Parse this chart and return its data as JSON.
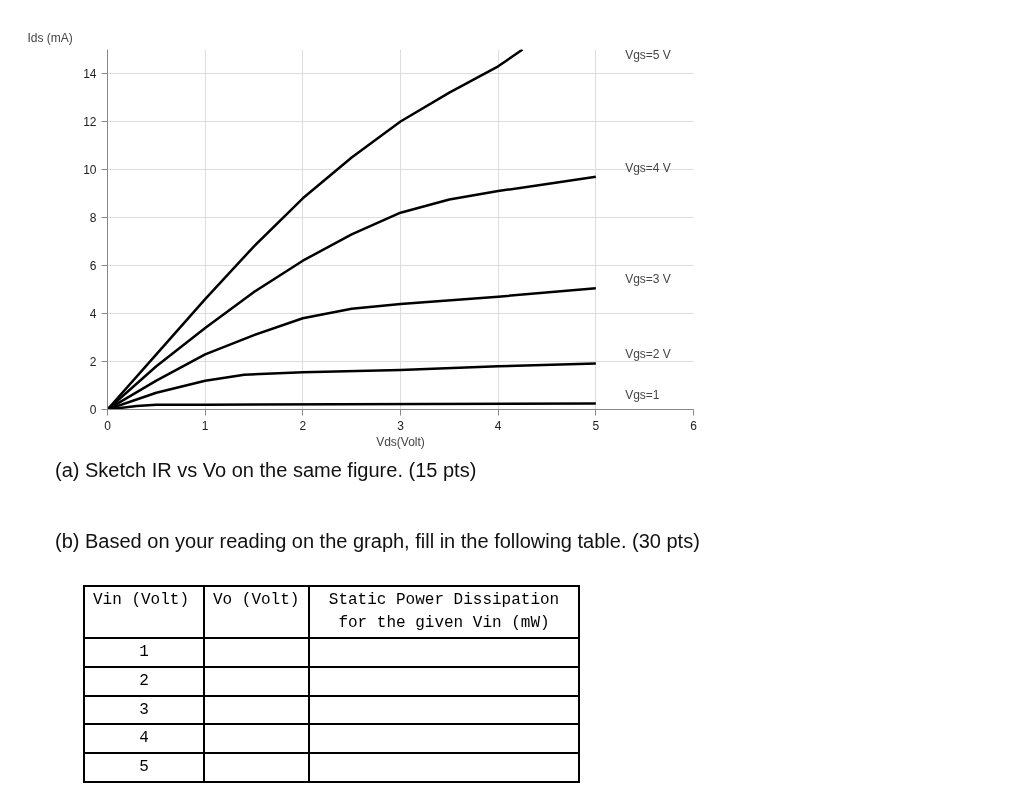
{
  "chart_data": {
    "type": "line",
    "xlabel": "Vds(Volt)",
    "ylabel": "Ids (mA)",
    "xlim": [
      0,
      6
    ],
    "ylim": [
      0,
      15
    ],
    "xticks": [
      0,
      1,
      2,
      3,
      4,
      5,
      6
    ],
    "yticks": [
      0,
      2,
      4,
      6,
      8,
      10,
      12,
      14
    ],
    "grid": true,
    "marker": "none",
    "line_style": "solid",
    "series": [
      {
        "name": "Vgs=5 V",
        "color": "#000000",
        "x": [
          0,
          0.5,
          1,
          1.5,
          2,
          2.5,
          3,
          3.5,
          4,
          4.25
        ],
        "values": [
          0,
          2.3,
          4.6,
          6.8,
          8.8,
          10.5,
          12,
          13.2,
          14.3,
          15
        ]
      },
      {
        "name": "Vgs=4 V",
        "color": "#000000",
        "x": [
          0,
          0.5,
          1,
          1.5,
          2,
          2.5,
          3,
          3.5,
          4,
          4.5,
          5
        ],
        "values": [
          0,
          1.8,
          3.4,
          4.9,
          6.2,
          7.3,
          8.2,
          8.75,
          9.1,
          9.4,
          9.7
        ]
      },
      {
        "name": "Vgs=3 V",
        "color": "#000000",
        "x": [
          0,
          0.5,
          1,
          1.5,
          2,
          2.5,
          3,
          4,
          5
        ],
        "values": [
          0,
          1.2,
          2.3,
          3.1,
          3.8,
          4.2,
          4.4,
          4.7,
          5.05
        ]
      },
      {
        "name": "Vgs=2 V",
        "color": "#000000",
        "x": [
          0,
          0.5,
          1,
          1.4,
          2,
          3,
          4,
          5
        ],
        "values": [
          0,
          0.7,
          1.2,
          1.45,
          1.55,
          1.65,
          1.8,
          1.92
        ]
      },
      {
        "name": "Vgs=1",
        "color": "#000000",
        "x": [
          0,
          0.3,
          0.5,
          1,
          5
        ],
        "values": [
          0,
          0.15,
          0.2,
          0.2,
          0.25
        ]
      }
    ],
    "annotations": [
      "(a) Sketch IR vs Vo on the same figure. (15 pts)",
      "(b) Based on your reading on the graph, fill in the following table. (30 pts)",
      "Vin (Volt)",
      "Vo (Volt)",
      "Static Power Dissipation for the given Vin (mW)",
      "1",
      "2",
      "3",
      "4",
      "5"
    ]
  }
}
